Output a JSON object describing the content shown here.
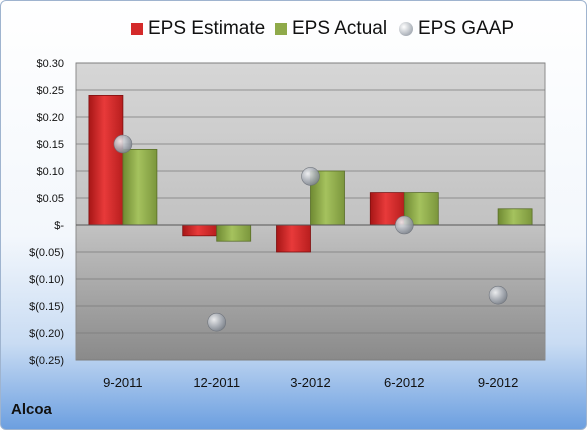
{
  "company": "Alcoa",
  "chart_data": {
    "type": "bar",
    "title": "",
    "xlabel": "",
    "ylabel": "",
    "categories": [
      "9-2011",
      "12-2011",
      "3-2012",
      "6-2012",
      "9-2012"
    ],
    "series": [
      {
        "name": "EPS Estimate",
        "kind": "bar",
        "color": "#d42a2a",
        "values": [
          0.24,
          -0.02,
          -0.05,
          0.06,
          null
        ]
      },
      {
        "name": "EPS Actual",
        "kind": "bar",
        "color": "#8faa4a",
        "values": [
          0.14,
          -0.03,
          0.1,
          0.06,
          0.03
        ]
      },
      {
        "name": "EPS GAAP",
        "kind": "marker",
        "color": "#b7bcc4",
        "values": [
          0.15,
          -0.18,
          0.09,
          0.0,
          -0.13
        ]
      }
    ],
    "ylim": [
      -0.25,
      0.3
    ],
    "yticks": [
      0.3,
      0.25,
      0.2,
      0.15,
      0.1,
      0.05,
      0.0,
      -0.05,
      -0.1,
      -0.15,
      -0.2,
      -0.25
    ],
    "ytick_labels": [
      "$0.30",
      "$0.25",
      "$0.20",
      "$0.15",
      "$0.10",
      "$0.05",
      "$-",
      "$(0.05)",
      "$(0.10)",
      "$(0.15)",
      "$(0.20)",
      "$(0.25)"
    ],
    "grid": true,
    "legend": "top"
  }
}
